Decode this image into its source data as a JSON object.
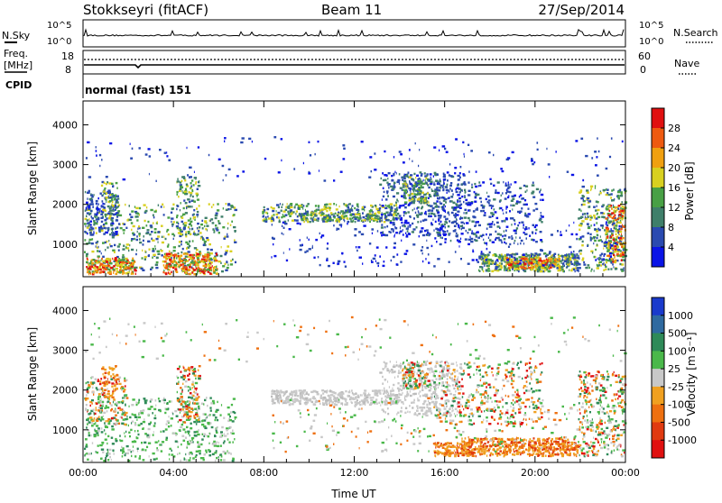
{
  "header": {
    "station": "Stokkseyri (fitACF)",
    "beam": "Beam 11",
    "date": "27/Sep/2014"
  },
  "noise_panel": {
    "left_label": "N.Sky",
    "right_label": "N.Search",
    "left_ticks": [
      "10^5",
      "10^0"
    ],
    "right_ticks": [
      "10^5",
      "10^0"
    ]
  },
  "freq_panel": {
    "left_label_1": "Freq.",
    "left_label_2": "[MHz]",
    "left_ticks": [
      "18",
      "8"
    ],
    "right_label": "Nave",
    "right_ticks": [
      "60",
      "0"
    ]
  },
  "cpid": {
    "label": "CPID",
    "text": "normal (fast) 151"
  },
  "chart_data": [
    {
      "type": "heatmap",
      "name": "power",
      "ylabel": "Slant Range [km]",
      "x_ticks": [
        "00:00",
        "04:00",
        "08:00",
        "12:00",
        "16:00",
        "20:00",
        "00:00"
      ],
      "y_ticks": [
        1000,
        2000,
        3000,
        4000
      ],
      "ylim": [
        180,
        4600
      ],
      "colorbar": {
        "label": "Power [dB]",
        "ticks": [
          "4",
          "8",
          "12",
          "16",
          "20",
          "24",
          "28"
        ],
        "colors": [
          "#0a14e6",
          "#2a4ab0",
          "#3f7f6a",
          "#48a045",
          "#d8d020",
          "#f0a010",
          "#ee5a10",
          "#e01010"
        ]
      }
    },
    {
      "type": "heatmap",
      "name": "velocity",
      "ylabel": "Slant Range [km]",
      "xlabel": "Time UT",
      "x_ticks": [
        "00:00",
        "04:00",
        "08:00",
        "12:00",
        "16:00",
        "20:00",
        "00:00"
      ],
      "y_ticks": [
        1000,
        2000,
        3000,
        4000
      ],
      "ylim": [
        180,
        4600
      ],
      "colorbar": {
        "label": "Velocity [m s⁻¹]",
        "ticks": [
          "1000",
          "500",
          "100",
          "25",
          "-25",
          "-100",
          "-500",
          "-1000"
        ],
        "colors": [
          "#1a3acc",
          "#2f6aa0",
          "#2e8a58",
          "#4ab84a",
          "#c8c8c8",
          "#f0a020",
          "#ee7010",
          "#e03a10",
          "#e01010"
        ]
      }
    }
  ]
}
